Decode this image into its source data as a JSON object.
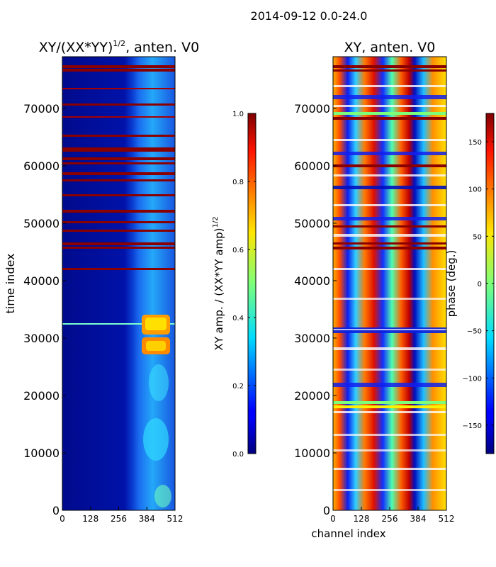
{
  "suptitle": "2014-09-12 0.0-24.0",
  "colors": {
    "frame": "#000000",
    "background": "#ffffff",
    "colormap": "jet"
  },
  "chart_data": [
    {
      "type": "heatmap",
      "title_main": "XY/(XX*YY)",
      "title_exp": "1/2",
      "title_rest": ", anten. V0",
      "xlabel": "",
      "ylabel": "time index",
      "xlim": [
        0,
        512
      ],
      "ylim": [
        0,
        79000
      ],
      "xticks": [
        0,
        128,
        256,
        384,
        512
      ],
      "yticks": [
        0,
        10000,
        20000,
        30000,
        40000,
        50000,
        60000,
        70000
      ],
      "colorbar": {
        "label_main": "XY amp. / (XX*YY amp)",
        "label_exp": "1/2",
        "range": [
          0.0,
          1.0
        ],
        "ticks": [
          0.0,
          0.2,
          0.4,
          0.6,
          0.8,
          1.0
        ],
        "tick_labels": [
          "0.0",
          "0.2",
          "0.4",
          "0.6",
          "0.8",
          "1.0"
        ]
      }
    },
    {
      "type": "heatmap",
      "title_main": "XY, anten. V0",
      "xlabel": "channel index",
      "ylabel": "",
      "xlim": [
        0,
        512
      ],
      "ylim": [
        0,
        79000
      ],
      "xticks": [
        0,
        128,
        256,
        384,
        512
      ],
      "yticks": [
        0,
        10000,
        20000,
        30000,
        40000,
        50000,
        60000,
        70000
      ],
      "colorbar": {
        "label_main": "phase (deg.)",
        "range": [
          -180,
          180
        ],
        "ticks": [
          -150,
          -100,
          -50,
          0,
          50,
          100,
          150
        ],
        "tick_labels": [
          "−150",
          "−100",
          "−50",
          "0",
          "50",
          "100",
          "150"
        ]
      }
    }
  ]
}
